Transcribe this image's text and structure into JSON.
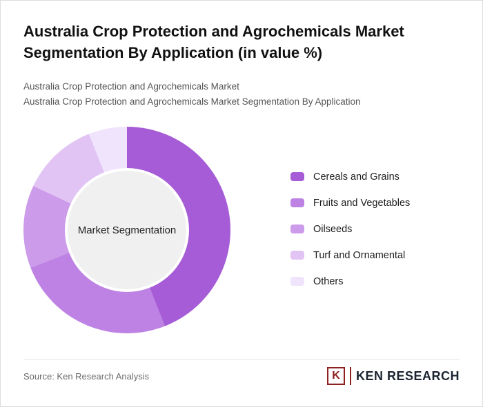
{
  "page": {
    "title": "Australia Crop Protection and Agrochemicals Market Segmentation By Application (in value %)",
    "subtitle_line1": "Australia Crop Protection and Agrochemicals Market",
    "subtitle_line2": "Australia Crop Protection and Agrochemicals Market Segmentation By Application",
    "source": "Source: Ken Research Analysis"
  },
  "chart_data": {
    "type": "pie",
    "variant": "donut",
    "title": "Australia Crop Protection and Agrochemicals Market Segmentation By Application (in value %)",
    "center_label": "Market Segmentation",
    "center_fill": "#f0f0f0",
    "categories": [
      "Cereals and Grains",
      "Fruits and Vegetables",
      "Oilseeds",
      "Turf and Ornamental",
      "Others"
    ],
    "values": [
      44,
      25,
      13,
      12,
      6
    ],
    "colors": [
      "#a55cd6",
      "#bd82e3",
      "#cc9cea",
      "#e1c4f4",
      "#f0e3fc"
    ],
    "legend_position": "right",
    "start_angle_deg": 0
  },
  "logo": {
    "monogram": "K",
    "text": "KEN RESEARCH"
  }
}
